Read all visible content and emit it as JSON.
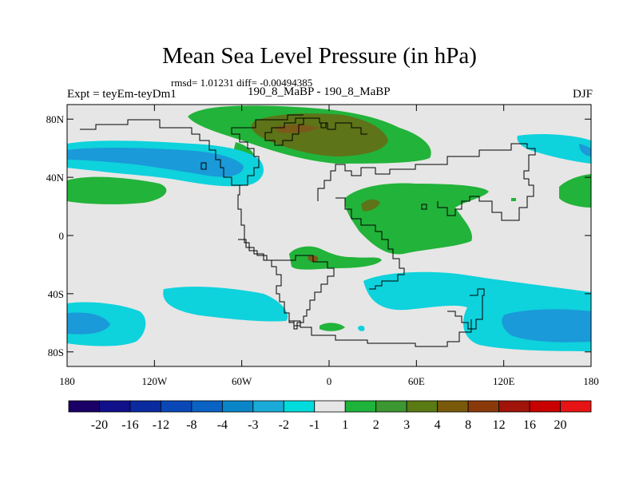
{
  "title": "Mean Sea Level Pressure (in hPa)",
  "stats": "rmsd= 1.01231 diff= -0.00494385",
  "experiment_left": "Expt = teyEm-teyDm1",
  "experiment_center": "190_8_MaBP - 190_8_MaBP",
  "season": "DJF",
  "axes": {
    "lat_ticks": [
      {
        "value": 80,
        "label": "80N"
      },
      {
        "value": 40,
        "label": "40N"
      },
      {
        "value": 0,
        "label": "0"
      },
      {
        "value": -40,
        "label": "40S"
      },
      {
        "value": -80,
        "label": "80S"
      }
    ],
    "lon_ticks": [
      {
        "value": -180,
        "label": "180"
      },
      {
        "value": -120,
        "label": "120W"
      },
      {
        "value": -60,
        "label": "60W"
      },
      {
        "value": 0,
        "label": "0"
      },
      {
        "value": 60,
        "label": "60E"
      },
      {
        "value": 120,
        "label": "120E"
      },
      {
        "value": 180,
        "label": "180"
      }
    ],
    "lon_range": [
      -180,
      180
    ],
    "lat_range": [
      -90,
      90
    ]
  },
  "colorbar": {
    "levels": [
      "-20",
      "-16",
      "-12",
      "-8",
      "-4",
      "-3",
      "-2",
      "-1",
      "1",
      "2",
      "3",
      "4",
      "8",
      "12",
      "16",
      "20"
    ],
    "colors": [
      "#1a0066",
      "#10108a",
      "#0a2aa0",
      "#0a48b8",
      "#0a62c4",
      "#0a86c8",
      "#1aaad8",
      "#00dcdc",
      "#e6e6e6",
      "#1eb43c",
      "#3c9632",
      "#5a7a14",
      "#785a0a",
      "#8a3a0a",
      "#a0140a",
      "#c80000",
      "#e61414"
    ]
  },
  "colors": {
    "ocean_neutral": "#e6e6e6",
    "green": "#22b33a",
    "olive": "#5d7418",
    "brown": "#7a5a1a",
    "cyan": "#0ed2dc",
    "blue": "#1a9ad8",
    "coast": "#000000"
  }
}
